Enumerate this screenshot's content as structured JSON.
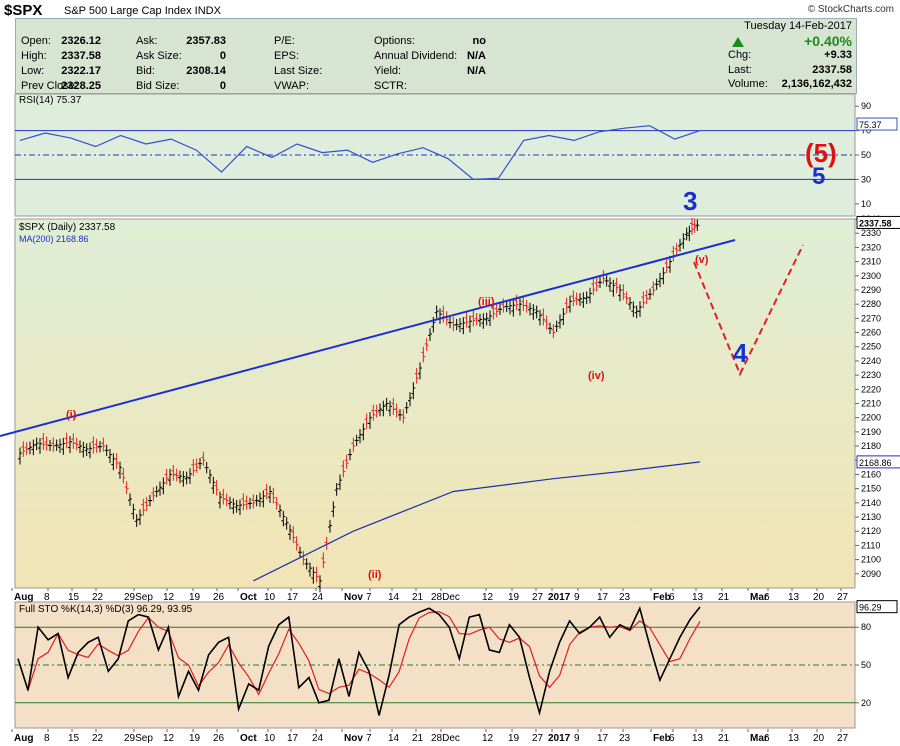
{
  "header": {
    "ticker": "$SPX",
    "name": "S&P 500 Large Cap Index  INDX",
    "credit": "© StockCharts.com"
  },
  "quote": {
    "rows": [
      [
        [
          "Open:",
          "2326.12"
        ],
        [
          "Ask:",
          "2357.83"
        ],
        [
          "P/E:",
          ""
        ],
        [
          "Options:",
          "no"
        ]
      ],
      [
        [
          "High:",
          "2337.58"
        ],
        [
          "Ask Size:",
          "0"
        ],
        [
          "EPS:",
          ""
        ],
        [
          "Annual Dividend:",
          "N/A"
        ]
      ],
      [
        [
          "Low:",
          "2322.17"
        ],
        [
          "Bid:",
          "2308.14"
        ],
        [
          "Last Size:",
          ""
        ],
        [
          "Yield:",
          "N/A"
        ]
      ],
      [
        [
          "Prev Close:",
          "2328.25"
        ],
        [
          "Bid Size:",
          "0"
        ],
        [
          "VWAP:",
          ""
        ],
        [
          "SCTR:",
          ""
        ]
      ]
    ],
    "date": "Tuesday  14-Feb-2017",
    "change_pct": "+0.40%",
    "chg_label": "Chg:",
    "chg": "+9.33",
    "last_label": "Last:",
    "last": "2337.58",
    "volume_label": "Volume:",
    "volume": "2,136,162,432",
    "up_color": "#1a8c1a"
  },
  "chart_data": [
    {
      "type": "line",
      "title": "RSI(14) 75.37",
      "ylim": [
        0,
        100
      ],
      "yticks": [
        10,
        30,
        50,
        70,
        90
      ],
      "levels": [
        30,
        50,
        70
      ],
      "last_label": "75.37",
      "x": [
        0,
        5,
        10,
        15,
        20,
        25,
        30,
        35,
        40,
        45,
        50,
        55,
        60,
        65,
        70,
        75,
        80,
        85,
        90,
        95,
        100,
        105,
        110,
        115,
        120,
        125,
        130,
        135
      ],
      "values": [
        62,
        68,
        64,
        57,
        66,
        59,
        63,
        54,
        36,
        57,
        48,
        59,
        52,
        54,
        44,
        51,
        56,
        47,
        30,
        31,
        62,
        66,
        62,
        69,
        72,
        74,
        63,
        70
      ],
      "annotations": [
        "(5)",
        "5"
      ]
    },
    {
      "type": "candlestick",
      "title": "$SPX (Daily) 2337.58",
      "series": [
        {
          "name": "MA(200) 2168.86"
        }
      ],
      "ylim": [
        2080,
        2340
      ],
      "yticks": [
        2090,
        2100,
        2110,
        2120,
        2130,
        2140,
        2150,
        2160,
        2170,
        2180,
        2190,
        2200,
        2210,
        2220,
        2230,
        2240,
        2250,
        2260,
        2270,
        2280,
        2290,
        2300,
        2310,
        2320,
        2330,
        2340
      ],
      "last_label": "2337.58",
      "ma_label": "2168.86",
      "x": [
        0,
        5,
        10,
        15,
        20,
        25,
        30,
        35,
        40,
        45,
        50,
        55,
        60,
        65,
        70,
        75,
        80,
        85,
        90,
        95,
        100,
        105,
        110,
        115,
        120,
        125,
        130,
        135
      ],
      "close": [
        2175,
        2182,
        2180,
        2183,
        2178,
        2180,
        2165,
        2128,
        2145,
        2160,
        2158,
        2170,
        2144,
        2138,
        2140,
        2148,
        2126,
        2100,
        2085,
        2150,
        2180,
        2200,
        2210,
        2200,
        2235,
        2275,
        2265,
        2268
      ],
      "close2": [
        2270,
        2278,
        2280,
        2275,
        2260,
        2282,
        2285,
        2298,
        2290,
        2275,
        2290,
        2310,
        2330,
        2337
      ],
      "x2": [
        140,
        145,
        150,
        155,
        160,
        165,
        170,
        175,
        180,
        185,
        190,
        195,
        200,
        204
      ],
      "ma": [
        [
          70,
          2085
        ],
        [
          100,
          2120
        ],
        [
          130,
          2148
        ],
        [
          160,
          2157
        ],
        [
          180,
          2162
        ],
        [
          204,
          2168.86
        ]
      ],
      "wave_labels": [
        "(i)",
        "(ii)",
        "(iii)",
        "(iv)",
        "(v)",
        "3",
        "4"
      ],
      "xticks": [
        "Aug",
        "8",
        "15",
        "22",
        "29Sep",
        "12",
        "19",
        "26",
        "Oct",
        "10",
        "17",
        "24",
        "Nov",
        "7",
        "14",
        "21",
        "28Dec",
        "12",
        "19",
        "27",
        "2017",
        "9",
        "17",
        "23",
        "Feb",
        "6",
        "13",
        "21",
        "Mar",
        "6",
        "13",
        "20",
        "27"
      ]
    },
    {
      "type": "line",
      "title": "Full STO %K(14,3) %D(3) 96.29, 93.95",
      "ylim": [
        0,
        100
      ],
      "yticks": [
        20,
        50,
        80
      ],
      "levels": [
        20,
        50,
        80
      ],
      "last_label": "96.29",
      "series": [
        {
          "color": "#000"
        },
        {
          "color": "#e02020"
        }
      ]
    }
  ]
}
